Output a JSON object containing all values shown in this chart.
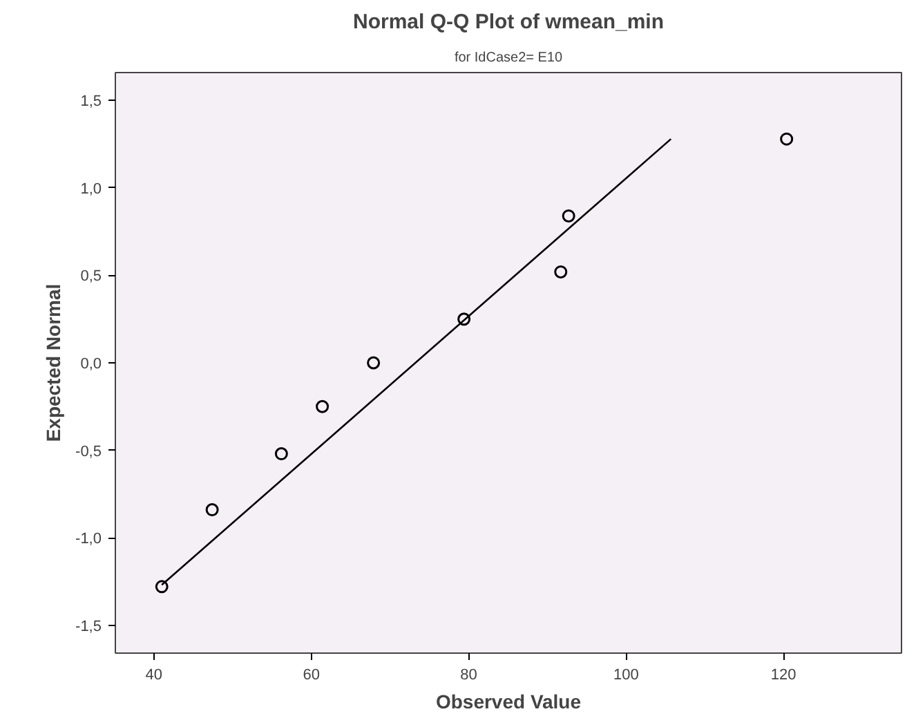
{
  "chart_data": {
    "type": "scatter",
    "title": "Normal Q-Q Plot of wmean_min",
    "subtitle": "for IdCase2= E10",
    "xlabel": "Observed Value",
    "ylabel": "Expected Normal",
    "xlim": [
      35.1,
      135
    ],
    "ylim": [
      -1.66,
      1.66
    ],
    "xticks": [
      40,
      60,
      80,
      100,
      120
    ],
    "yticks": [
      {
        "value": -1.5,
        "label": "-1,5"
      },
      {
        "value": -1.0,
        "label": "-1,0"
      },
      {
        "value": -0.5,
        "label": "-0,5"
      },
      {
        "value": 0,
        "label": "0,0"
      },
      {
        "value": 0.5,
        "label": "0,5"
      },
      {
        "value": 1.0,
        "label": "1,0"
      },
      {
        "value": 1.5,
        "label": "1,5"
      }
    ],
    "grid": false,
    "series": [
      {
        "marker": "circle",
        "color": "#000000",
        "x": [
          41.0,
          47.4,
          56.2,
          61.4,
          67.9,
          79.4,
          91.7,
          92.7,
          120.4
        ],
        "values": [
          -1.28,
          -0.84,
          -0.52,
          -0.25,
          0,
          0.25,
          0.52,
          0.84,
          1.28
        ]
      },
      {
        "type": "line",
        "line_style": "solid",
        "color": "#000000",
        "x": [
          41.0,
          105.7
        ],
        "values": [
          -1.27,
          1.28
        ]
      }
    ]
  }
}
